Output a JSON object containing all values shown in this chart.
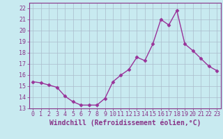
{
  "x": [
    0,
    1,
    2,
    3,
    4,
    5,
    6,
    7,
    8,
    9,
    10,
    11,
    12,
    13,
    14,
    15,
    16,
    17,
    18,
    19,
    20,
    21,
    22,
    23
  ],
  "y": [
    15.4,
    15.3,
    15.1,
    14.9,
    14.1,
    13.6,
    13.3,
    13.3,
    13.3,
    13.9,
    15.4,
    16.0,
    16.5,
    17.6,
    17.3,
    18.8,
    21.0,
    20.5,
    21.8,
    18.8,
    18.2,
    17.5,
    16.8,
    16.4
  ],
  "line_color": "#993399",
  "marker": "D",
  "markersize": 2.5,
  "linewidth": 1.0,
  "xlabel": "Windchill (Refroidissement éolien,°C)",
  "xlim": [
    -0.5,
    23.5
  ],
  "ylim": [
    13,
    22.5
  ],
  "yticks": [
    13,
    14,
    15,
    16,
    17,
    18,
    19,
    20,
    21,
    22
  ],
  "xticks": [
    0,
    1,
    2,
    3,
    4,
    5,
    6,
    7,
    8,
    9,
    10,
    11,
    12,
    13,
    14,
    15,
    16,
    17,
    18,
    19,
    20,
    21,
    22,
    23
  ],
  "bg_color": "#c8eaf0",
  "grid_color": "#aabbcc",
  "line_label_color": "#883388",
  "xlabel_fontsize": 7,
  "tick_fontsize": 6
}
